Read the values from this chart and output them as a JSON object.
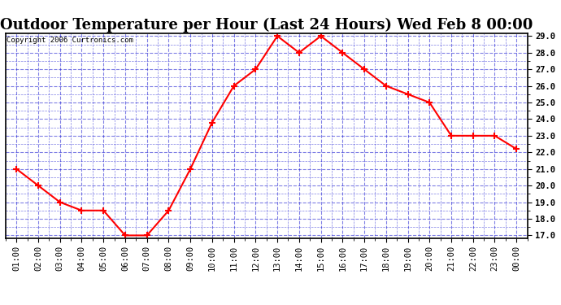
{
  "title": "Outdoor Temperature per Hour (Last 24 Hours) Wed Feb 8 00:00",
  "copyright": "Copyright 2006 Curtronics.com",
  "hours": [
    "01:00",
    "02:00",
    "03:00",
    "04:00",
    "05:00",
    "06:00",
    "07:00",
    "08:00",
    "09:00",
    "10:00",
    "11:00",
    "12:00",
    "13:00",
    "14:00",
    "15:00",
    "16:00",
    "17:00",
    "18:00",
    "19:00",
    "20:00",
    "21:00",
    "22:00",
    "23:00",
    "00:00"
  ],
  "temps": [
    21.0,
    20.0,
    19.0,
    18.5,
    18.5,
    17.0,
    17.0,
    18.5,
    21.0,
    23.8,
    26.0,
    27.0,
    29.0,
    28.0,
    29.0,
    28.0,
    27.0,
    26.0,
    25.5,
    25.0,
    23.0,
    23.0,
    23.0,
    22.2
  ],
  "ylim_min": 17.0,
  "ylim_max": 29.0,
  "ytick_step": 1.0,
  "line_color": "red",
  "marker": "+",
  "marker_size": 6,
  "marker_color": "red",
  "grid_color": "#0000cc",
  "grid_style": "--",
  "grid_alpha": 0.5,
  "bg_color": "white",
  "plot_bg_color": "white",
  "title_fontsize": 13,
  "tick_fontsize": 7.5,
  "copyright_fontsize": 6.5,
  "line_width": 1.5,
  "marker_edge_width": 1.5
}
